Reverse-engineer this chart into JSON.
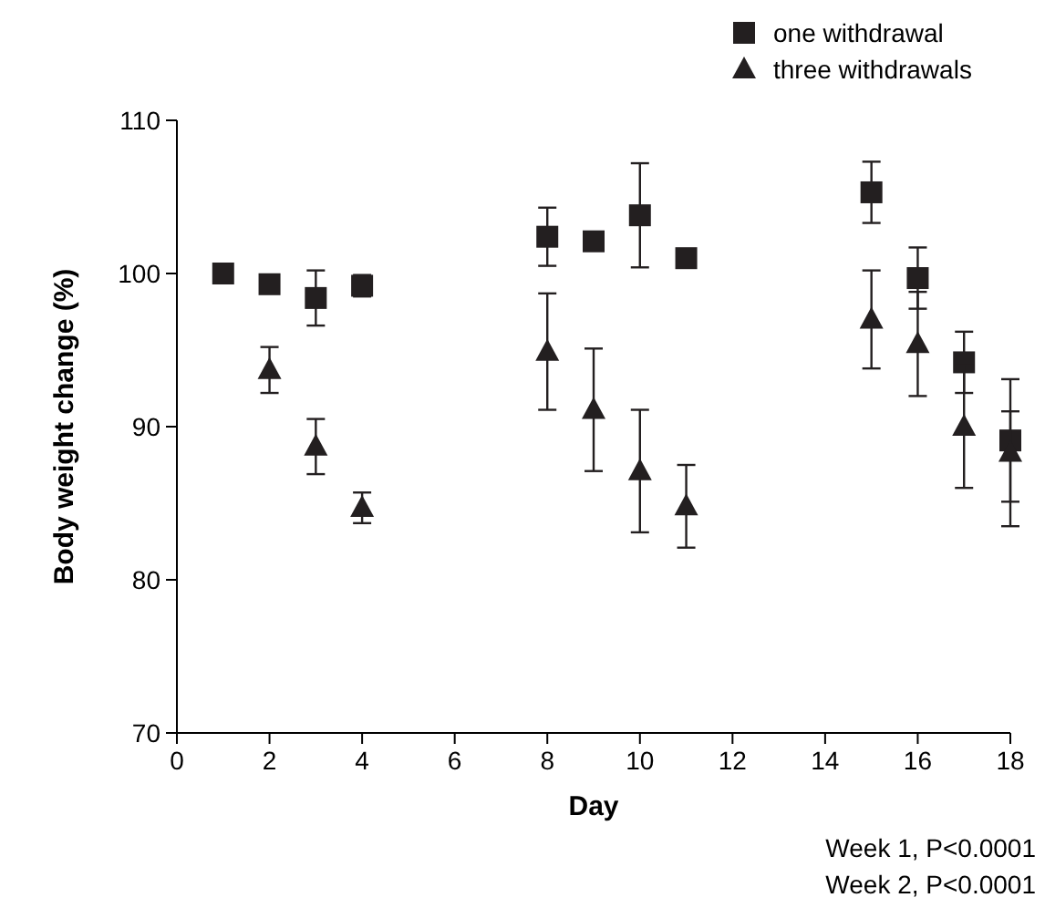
{
  "chart_data": {
    "type": "scatter",
    "xlabel": "Day",
    "ylabel": "Body weight change (%)",
    "xlim": [
      0,
      18
    ],
    "xticks": [
      0,
      2,
      4,
      6,
      8,
      10,
      12,
      14,
      16,
      18
    ],
    "ylim": [
      70,
      110
    ],
    "yticks": [
      70,
      80,
      90,
      100,
      110
    ],
    "legend": "top right",
    "grid": false,
    "series": [
      {
        "name": "one withdrawal",
        "color": "#231f20",
        "marker": "square",
        "x": [
          1,
          2,
          3,
          4,
          8,
          9,
          10,
          11,
          15,
          16,
          17,
          18
        ],
        "values": [
          100,
          99.3,
          98.4,
          99.2,
          102.4,
          102.1,
          103.8,
          101,
          105.3,
          99.7,
          94.2,
          89.1
        ],
        "errors": [
          null,
          0.5,
          1.8,
          0.7,
          1.9,
          null,
          3.4,
          null,
          2,
          2,
          2,
          4
        ]
      },
      {
        "name": "three withdrawals",
        "color": "#231f20",
        "marker": "triangle",
        "x": [
          2,
          3,
          4,
          8,
          9,
          10,
          11,
          15,
          16,
          17,
          18
        ],
        "values": [
          93.7,
          88.7,
          84.7,
          94.9,
          91.1,
          87.1,
          84.8,
          97,
          95.4,
          90,
          88.3
        ],
        "errors": [
          1.5,
          1.8,
          1,
          3.8,
          4,
          4,
          2.7,
          3.2,
          3.4,
          4,
          [
            83.5,
            91
          ]
        ]
      }
    ],
    "annotations": [
      "Week 1, P<0.0001",
      "Week 2, P<0.0001"
    ]
  }
}
